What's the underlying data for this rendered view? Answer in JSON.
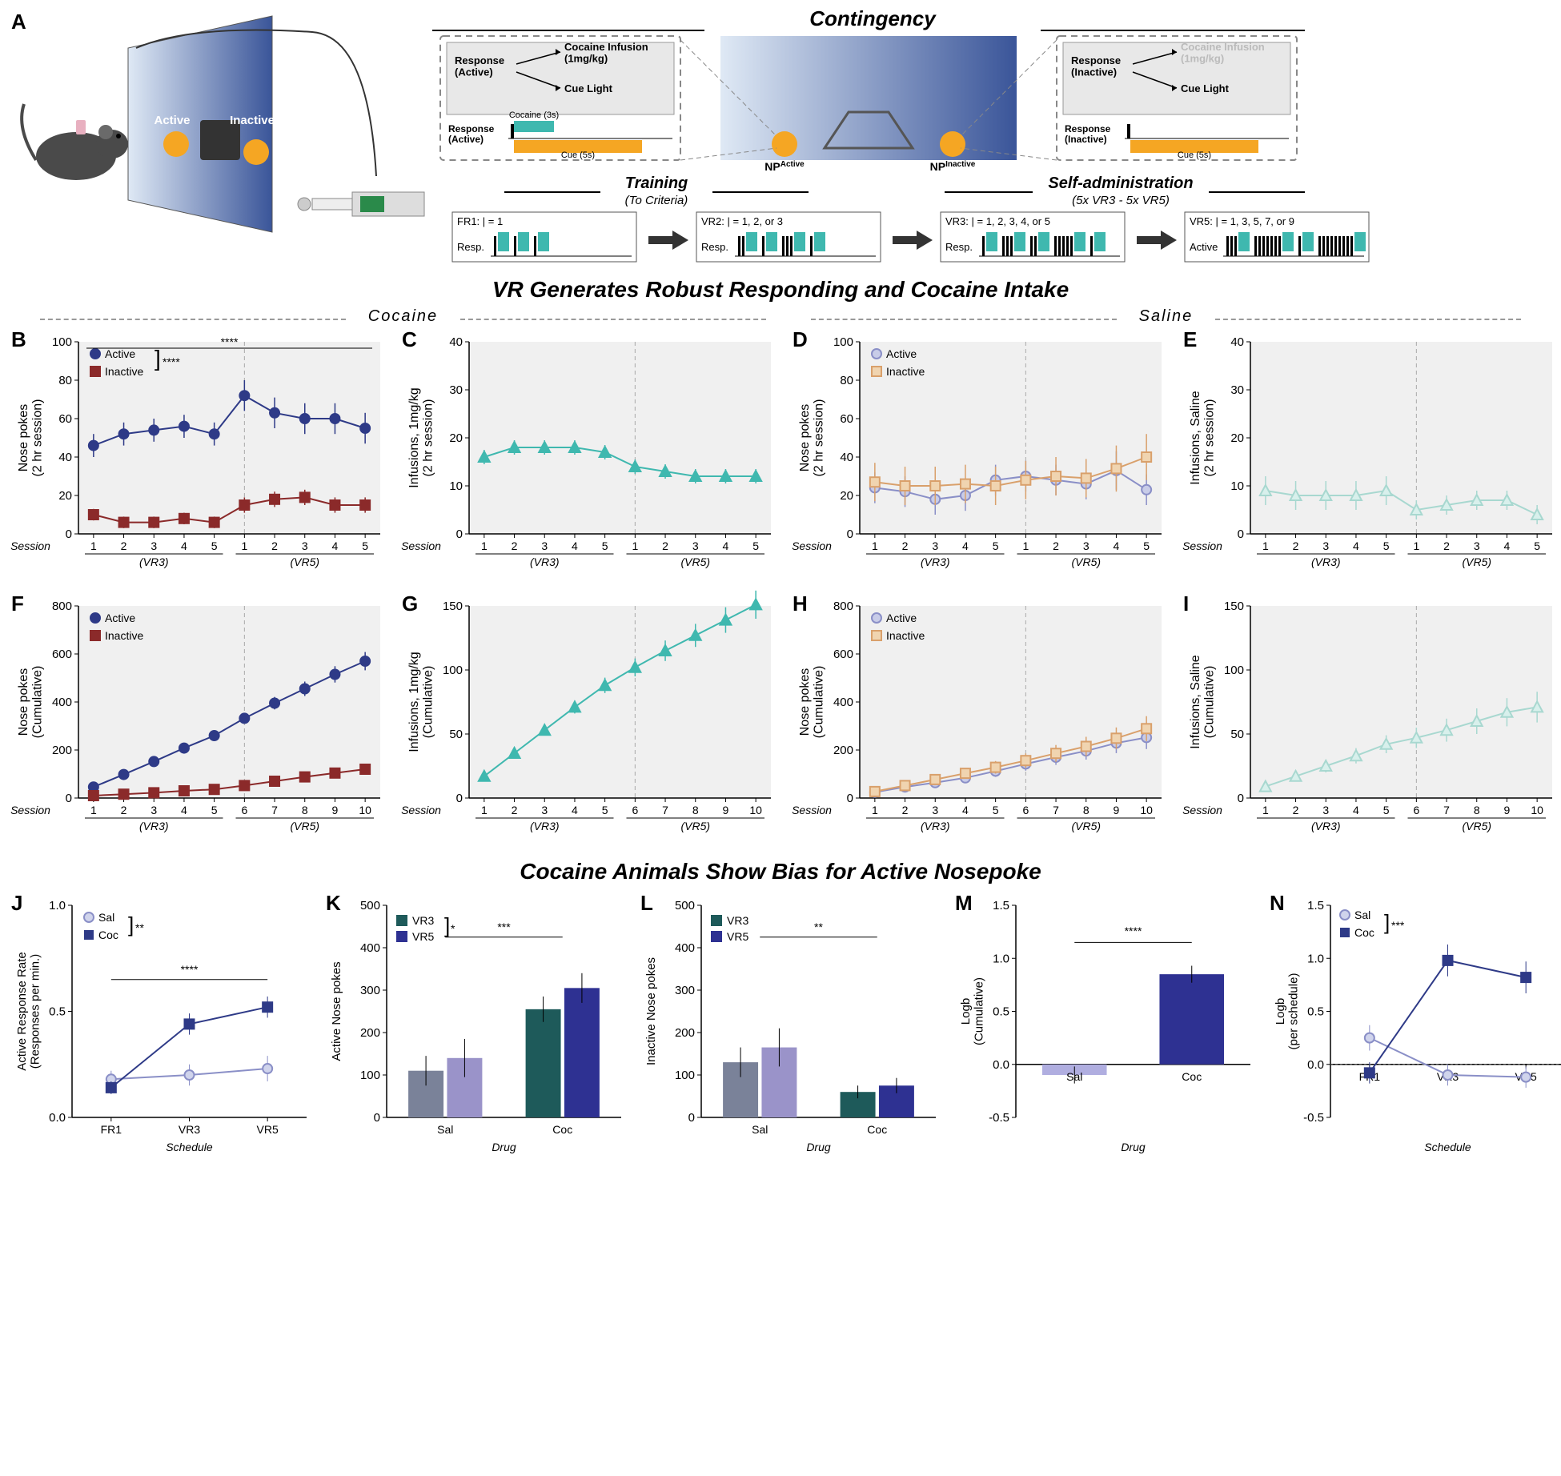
{
  "colors": {
    "active_cocaine": "#2e3a87",
    "inactive_cocaine": "#8b2a2a",
    "active_saline": "#8a8fc7",
    "inactive_saline": "#d9a06b",
    "infusion_cocaine": "#3fb8af",
    "infusion_saline": "#a8d8d0",
    "bar_sal_vr3": "#7a8299",
    "bar_sal_vr5": "#9a93c9",
    "bar_coc_vr3": "#1e5a5a",
    "bar_coc_vr5": "#2e3192",
    "bar_m_sal": "#b0aee0",
    "bar_m_coc": "#2e3192",
    "panel_bg": "#f0f0f0",
    "grid": "#d0d0d0"
  },
  "panel_A": {
    "title": "Contingency",
    "left_box": {
      "response": "Response\n(Active)",
      "out1": "Cocaine Infusion\n(1mg/kg)",
      "out2": "Cue Light",
      "timeline_resp": "Response\n(Active)",
      "cocaine_label": "Cocaine (3s)",
      "cue_label": "Cue (5s)"
    },
    "right_box": {
      "response": "Response\n(Inactive)",
      "out1": "Cocaine Infusion\n(1mg/kg)",
      "out2": "Cue Light",
      "timeline_resp": "Response\n(Inactive)",
      "cue_label": "Cue (5s)"
    },
    "np_active": "NPActive",
    "np_inactive": "NPInactive",
    "mouse_active": "Active",
    "mouse_inactive": "Inactive",
    "training_title": "Training",
    "training_sub": "(To Criteria)",
    "sa_title": "Self-administration",
    "sa_sub": "(5x VR3 - 5x VR5)",
    "fr1": "FR1: | = 1",
    "vr2": "VR2: | = 1, 2, or 3",
    "vr3": "VR3: | = 1, 2, 3, 4, or 5",
    "vr5": "VR5: | = 1, 3, 5, 7, or 9",
    "resp": "Resp.",
    "active": "Active"
  },
  "section1_title": "VR Generates Robust Responding and Cocaine Intake",
  "sub_cocaine": "Cocaine",
  "sub_saline": "Saline",
  "section2_title": "Cocaine Animals Show Bias for Active Nosepoke",
  "panels": {
    "B": {
      "ylabel": "Nose pokes\n(2 hr session)",
      "ylim": [
        0,
        100
      ],
      "ytick": 20,
      "xlabel": "Session",
      "xticks": [
        1,
        2,
        3,
        4,
        5,
        1,
        2,
        3,
        4,
        5
      ],
      "groups_label": [
        "(VR3)",
        "(VR5)"
      ],
      "legend": [
        "Active",
        "Inactive"
      ],
      "sig": "****",
      "active": [
        46,
        52,
        54,
        56,
        52,
        72,
        63,
        60,
        60,
        55
      ],
      "active_err": [
        6,
        6,
        6,
        6,
        6,
        8,
        8,
        8,
        8,
        8
      ],
      "inactive": [
        10,
        6,
        6,
        8,
        6,
        15,
        18,
        19,
        15,
        15
      ],
      "inactive_err": [
        3,
        3,
        3,
        3,
        3,
        4,
        4,
        4,
        4,
        4
      ]
    },
    "C": {
      "ylabel": "Infusions, 1mg/kg\n(2 hr session)",
      "ylim": [
        0,
        40
      ],
      "ytick": 10,
      "xlabel": "Session",
      "xticks": [
        1,
        2,
        3,
        4,
        5,
        1,
        2,
        3,
        4,
        5
      ],
      "groups_label": [
        "(VR3)",
        "(VR5)"
      ],
      "data": [
        16,
        18,
        18,
        18,
        17,
        14,
        13,
        12,
        12,
        12
      ],
      "err": [
        1.5,
        1.5,
        1.5,
        1.5,
        1.5,
        1.5,
        1.5,
        1.5,
        1.5,
        1.5
      ]
    },
    "D": {
      "ylabel": "Nose pokes\n(2 hr session)",
      "ylim": [
        0,
        100
      ],
      "ytick": 20,
      "xlabel": "Session",
      "xticks": [
        1,
        2,
        3,
        4,
        5,
        1,
        2,
        3,
        4,
        5
      ],
      "groups_label": [
        "(VR3)",
        "(VR5)"
      ],
      "legend": [
        "Active",
        "Inactive"
      ],
      "active": [
        24,
        22,
        18,
        20,
        28,
        30,
        28,
        26,
        33,
        23
      ],
      "active_err": [
        8,
        8,
        8,
        8,
        8,
        8,
        8,
        8,
        10,
        8
      ],
      "inactive": [
        27,
        25,
        25,
        26,
        25,
        28,
        30,
        29,
        34,
        40
      ],
      "inactive_err": [
        10,
        10,
        10,
        10,
        10,
        10,
        10,
        10,
        12,
        12
      ]
    },
    "E": {
      "ylabel": "Infusions, Saline\n(2 hr session)",
      "ylim": [
        0,
        40
      ],
      "ytick": 10,
      "xlabel": "Session",
      "xticks": [
        1,
        2,
        3,
        4,
        5,
        1,
        2,
        3,
        4,
        5
      ],
      "groups_label": [
        "(VR3)",
        "(VR5)"
      ],
      "data": [
        9,
        8,
        8,
        8,
        9,
        5,
        6,
        7,
        7,
        4
      ],
      "err": [
        3,
        3,
        3,
        3,
        3,
        2,
        2,
        2,
        2,
        2
      ]
    },
    "F": {
      "ylabel": "Nose pokes\n(Cumulative)",
      "ylim": [
        0,
        800
      ],
      "ytick": 200,
      "xlabel": "Session",
      "xticks": [
        1,
        2,
        3,
        4,
        5,
        6,
        7,
        8,
        9,
        10
      ],
      "groups_label": [
        "(VR3)",
        "(VR5)"
      ],
      "legend": [
        "Active",
        "Inactive"
      ],
      "active": [
        46,
        98,
        152,
        208,
        260,
        332,
        395,
        455,
        515,
        570
      ],
      "active_err": [
        8,
        10,
        12,
        15,
        18,
        22,
        26,
        30,
        34,
        38
      ],
      "inactive": [
        10,
        16,
        22,
        30,
        36,
        52,
        70,
        88,
        104,
        120
      ],
      "inactive_err": [
        4,
        5,
        6,
        7,
        8,
        9,
        10,
        11,
        12,
        13
      ]
    },
    "G": {
      "ylabel": "Infusions, 1mg/kg\n(Cumulative)",
      "ylim": [
        0,
        150
      ],
      "ytick": 50,
      "xlabel": "Session",
      "xticks": [
        1,
        2,
        3,
        4,
        5,
        6,
        7,
        8,
        9,
        10
      ],
      "groups_label": [
        "(VR3)",
        "(VR5)"
      ],
      "data": [
        17,
        35,
        53,
        71,
        88,
        102,
        115,
        127,
        139,
        151
      ],
      "err": [
        2,
        3,
        4,
        5,
        6,
        7,
        8,
        9,
        10,
        11
      ]
    },
    "H": {
      "ylabel": "Nose pokes\n(Cumulative)",
      "ylim": [
        0,
        800
      ],
      "ytick": 200,
      "xlabel": "Session",
      "xticks": [
        1,
        2,
        3,
        4,
        5,
        6,
        7,
        8,
        9,
        10
      ],
      "groups_label": [
        "(VR3)",
        "(VR5)"
      ],
      "legend": [
        "Active",
        "Inactive"
      ],
      "active": [
        24,
        46,
        64,
        84,
        112,
        142,
        170,
        196,
        229,
        252
      ],
      "active_err": [
        8,
        12,
        16,
        20,
        24,
        28,
        32,
        36,
        42,
        48
      ],
      "inactive": [
        27,
        52,
        77,
        103,
        128,
        156,
        186,
        215,
        249,
        289
      ],
      "inactive_err": [
        10,
        14,
        18,
        22,
        26,
        30,
        35,
        40,
        45,
        52
      ]
    },
    "I": {
      "ylabel": "Infusions, Saline\n(Cumulative)",
      "ylim": [
        0,
        150
      ],
      "ytick": 50,
      "xlabel": "Session",
      "xticks": [
        1,
        2,
        3,
        4,
        5,
        6,
        7,
        8,
        9,
        10
      ],
      "groups_label": [
        "(VR3)",
        "(VR5)"
      ],
      "data": [
        9,
        17,
        25,
        33,
        42,
        47,
        53,
        60,
        67,
        71
      ],
      "err": [
        3,
        4,
        5,
        6,
        7,
        8,
        9,
        10,
        11,
        12
      ]
    },
    "J": {
      "ylabel": "Active Response Rate\n(Responses per min.)",
      "ylim": [
        0,
        1.0
      ],
      "ytick": 0.5,
      "xlabel": "Schedule",
      "xticks_labels": [
        "FR1",
        "VR3",
        "VR5"
      ],
      "legend": [
        "Sal",
        "Coc"
      ],
      "sal": [
        0.18,
        0.2,
        0.23
      ],
      "sal_err": [
        0.04,
        0.05,
        0.06
      ],
      "coc": [
        0.14,
        0.44,
        0.52
      ],
      "coc_err": [
        0.03,
        0.05,
        0.05
      ],
      "sig1": "**",
      "sig2": "****"
    },
    "K": {
      "ylabel": "Active Nose pokes",
      "ylim": [
        0,
        500
      ],
      "ytick": 100,
      "xlabel": "Drug",
      "xgroups": [
        "Sal",
        "Coc"
      ],
      "legend": [
        "VR3",
        "VR5"
      ],
      "sig_legend": "*",
      "sig": "***",
      "sal_vr3": 110,
      "sal_vr5": 140,
      "sal_vr3_err": 35,
      "sal_vr5_err": 45,
      "coc_vr3": 255,
      "coc_vr5": 305,
      "coc_vr3_err": 30,
      "coc_vr5_err": 35
    },
    "L": {
      "ylabel": "Inactive Nose pokes",
      "ylim": [
        0,
        500
      ],
      "ytick": 100,
      "xlabel": "Drug",
      "xgroups": [
        "Sal",
        "Coc"
      ],
      "legend": [
        "VR3",
        "VR5"
      ],
      "sig": "**",
      "sal_vr3": 130,
      "sal_vr5": 165,
      "sal_vr3_err": 35,
      "sal_vr5_err": 45,
      "coc_vr3": 60,
      "coc_vr5": 75,
      "coc_vr3_err": 15,
      "coc_vr5_err": 18
    },
    "M": {
      "ylabel": "Logb\n(Cumulative)",
      "ylim": [
        -0.5,
        1.5
      ],
      "ytick": 0.5,
      "xlabel": "Drug",
      "xgroups": [
        "Sal",
        "Coc"
      ],
      "sig": "****",
      "sal": -0.1,
      "sal_err": 0.08,
      "coc": 0.85,
      "coc_err": 0.08
    },
    "N": {
      "ylabel": "Logb\n(per schedule)",
      "ylim": [
        -0.5,
        1.5
      ],
      "ytick": 0.5,
      "xlabel": "Schedule",
      "xticks_labels": [
        "FR1",
        "VR3",
        "VR5"
      ],
      "legend": [
        "Sal",
        "Coc"
      ],
      "sig_legend": "***",
      "sal": [
        0.25,
        -0.1,
        -0.12
      ],
      "sal_err": [
        0.12,
        0.1,
        0.1
      ],
      "coc": [
        -0.08,
        0.98,
        0.82
      ],
      "coc_err": [
        0.1,
        0.15,
        0.15
      ]
    }
  }
}
